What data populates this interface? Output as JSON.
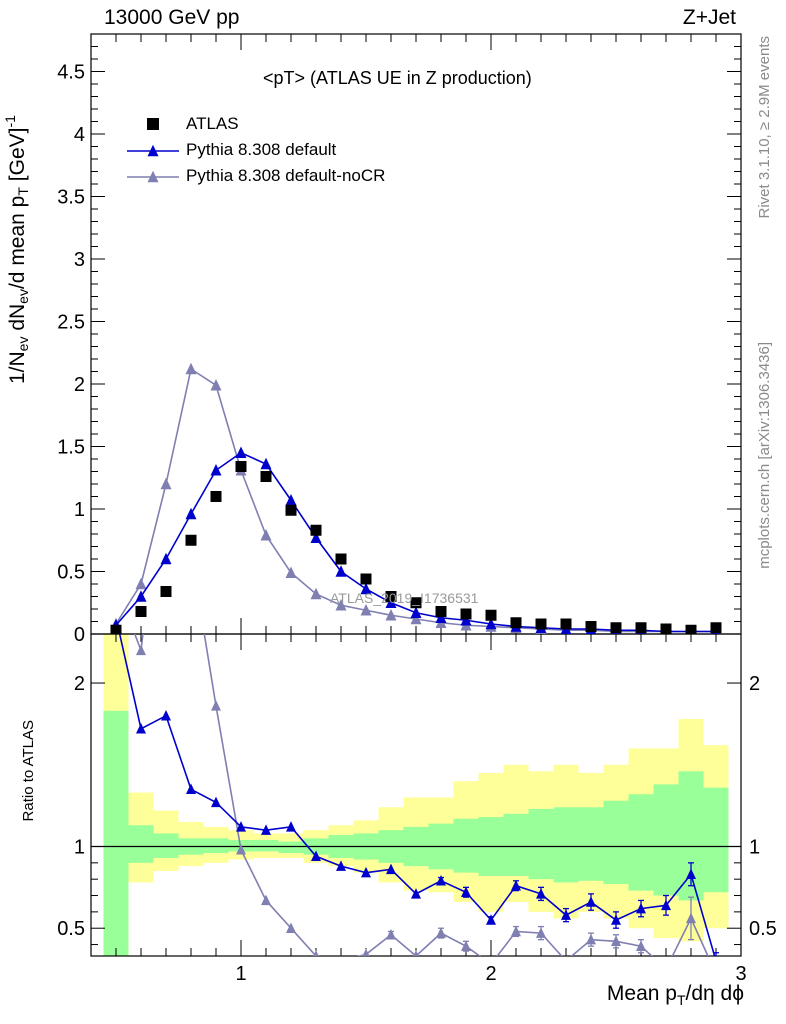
{
  "header": {
    "left": "13000 GeV pp",
    "right": "Z+Jet"
  },
  "side": {
    "rivet": "Rivet 3.1.10, ≥ 2.9M events",
    "mcplots": "mcplots.cern.ch [arXiv:1306.3436]"
  },
  "plot_title": "<pT> (ATLAS UE in Z production)",
  "watermark": "ATLAS_2019_I1736531",
  "legend": [
    {
      "label": "ATLAS",
      "marker": "square",
      "color": "#000000"
    },
    {
      "label": "Pythia 8.308 default",
      "marker": "triangle",
      "color": "#0000cc"
    },
    {
      "label": "Pythia 8.308 default-noCR",
      "marker": "triangle",
      "color": "#7f7fb2"
    }
  ],
  "axes": {
    "ylabel_top": "1/N_ev dN_ev/d mean p_T [GeV]^-1",
    "ylabel_bottom": "Ratio to ATLAS",
    "xlabel": "Mean p_T/dη dϕ"
  },
  "chart_data": [
    {
      "type": "scatter",
      "panel": "main",
      "xlim": [
        0.4,
        3.0
      ],
      "ylim": [
        0,
        4.8
      ],
      "x_ticks": [
        1,
        2,
        3
      ],
      "y_ticks": [
        0,
        0.5,
        1,
        1.5,
        2,
        2.5,
        3,
        3.5,
        4,
        4.5
      ],
      "y_tick_labels": [
        "0",
        "0.5",
        "1",
        "1.5",
        "2",
        "2.5",
        "3",
        "3.5",
        "4",
        "4.5"
      ],
      "x": [
        0.5,
        0.6,
        0.7,
        0.8,
        0.9,
        1.0,
        1.1,
        1.2,
        1.3,
        1.4,
        1.5,
        1.6,
        1.7,
        1.8,
        1.9,
        2.0,
        2.1,
        2.2,
        2.3,
        2.4,
        2.5,
        2.6,
        2.7,
        2.8,
        2.9
      ],
      "series": [
        {
          "name": "ATLAS",
          "color": "#000000",
          "values": [
            0.03,
            0.18,
            0.34,
            0.75,
            1.1,
            1.34,
            1.26,
            0.99,
            0.83,
            0.6,
            0.44,
            0.3,
            0.25,
            0.18,
            0.16,
            0.15,
            0.09,
            0.08,
            0.08,
            0.06,
            0.05,
            0.05,
            0.04,
            0.03,
            0.05
          ]
        },
        {
          "name": "Pythia 8.308 default",
          "color": "#0000cc",
          "values": [
            0.07,
            0.3,
            0.6,
            0.96,
            1.31,
            1.45,
            1.36,
            1.07,
            0.77,
            0.5,
            0.36,
            0.25,
            0.17,
            0.13,
            0.11,
            0.08,
            0.06,
            0.05,
            0.04,
            0.04,
            0.03,
            0.03,
            0.02,
            0.02,
            0.02
          ]
        },
        {
          "name": "Pythia 8.308 default-noCR",
          "color": "#7f7fb2",
          "values": [
            0.08,
            0.4,
            1.2,
            2.12,
            1.99,
            1.31,
            0.79,
            0.49,
            0.32,
            0.23,
            0.19,
            0.15,
            0.12,
            0.09,
            0.07,
            0.06,
            0.05,
            0.04,
            0.03,
            0.03,
            0.02,
            0.02,
            0.02,
            0.02,
            0.02
          ]
        }
      ]
    },
    {
      "type": "line",
      "panel": "ratio",
      "xlim": [
        0.4,
        3.0
      ],
      "ylim": [
        0.33,
        2.3
      ],
      "x_ticks": [
        1,
        2,
        3
      ],
      "x_tick_labels": [
        "1",
        "2",
        "3"
      ],
      "y_ticks": [
        0.5,
        1,
        2
      ],
      "y_tick_labels": [
        "0.5",
        "1",
        "2"
      ],
      "reference_line": 1,
      "x": [
        0.5,
        0.6,
        0.7,
        0.8,
        0.9,
        1.0,
        1.1,
        1.2,
        1.3,
        1.4,
        1.5,
        1.6,
        1.7,
        1.8,
        1.9,
        2.0,
        2.1,
        2.2,
        2.3,
        2.4,
        2.5,
        2.6,
        2.7,
        2.8,
        2.9
      ],
      "bands": {
        "outer": {
          "name": "total uncertainty",
          "color": "#ffff99",
          "lower": [
            0.2,
            0.78,
            0.85,
            0.88,
            0.9,
            0.92,
            0.93,
            0.93,
            0.9,
            0.88,
            0.84,
            0.78,
            0.73,
            0.72,
            0.66,
            0.6,
            0.66,
            0.6,
            0.56,
            0.6,
            0.56,
            0.5,
            0.44,
            0.42,
            0.5
          ],
          "upper": [
            2.5,
            1.33,
            1.22,
            1.15,
            1.12,
            1.1,
            1.08,
            1.08,
            1.1,
            1.13,
            1.16,
            1.24,
            1.3,
            1.3,
            1.4,
            1.45,
            1.5,
            1.46,
            1.5,
            1.45,
            1.5,
            1.6,
            1.6,
            1.78,
            1.62
          ]
        },
        "inner": {
          "name": "stat uncertainty",
          "color": "#99ff99",
          "lower": [
            0.2,
            0.9,
            0.93,
            0.95,
            0.96,
            0.97,
            0.97,
            0.96,
            0.95,
            0.93,
            0.92,
            0.9,
            0.88,
            0.86,
            0.84,
            0.82,
            0.82,
            0.8,
            0.78,
            0.79,
            0.77,
            0.73,
            0.7,
            0.67,
            0.72
          ],
          "upper": [
            1.83,
            1.13,
            1.08,
            1.05,
            1.05,
            1.04,
            1.04,
            1.03,
            1.05,
            1.07,
            1.08,
            1.1,
            1.12,
            1.14,
            1.17,
            1.18,
            1.2,
            1.23,
            1.24,
            1.24,
            1.28,
            1.32,
            1.38,
            1.46,
            1.36
          ]
        }
      },
      "series": [
        {
          "name": "Pythia 8.308 default",
          "color": "#0000cc",
          "values": [
            2.4,
            1.72,
            1.8,
            1.35,
            1.27,
            1.12,
            1.1,
            1.12,
            0.94,
            0.88,
            0.84,
            0.86,
            0.71,
            0.79,
            0.72,
            0.55,
            0.76,
            0.71,
            0.58,
            0.66,
            0.55,
            0.62,
            0.64,
            0.83,
            0.3
          ],
          "errors": [
            0,
            0,
            0,
            0,
            0,
            0,
            0,
            0,
            0,
            0,
            0,
            0,
            0,
            0.02,
            0.03,
            0.02,
            0.03,
            0.04,
            0.04,
            0.05,
            0.05,
            0.05,
            0.06,
            0.07,
            0.05
          ]
        },
        {
          "name": "Pythia 8.308 default-noCR",
          "color": "#7f7fb2",
          "values": [
            2.6,
            2.2,
            3.5,
            2.8,
            1.86,
            0.98,
            0.67,
            0.5,
            0.33,
            0.3,
            0.34,
            0.46,
            0.33,
            0.47,
            0.39,
            0.28,
            0.48,
            0.47,
            0.3,
            0.43,
            0.42,
            0.39,
            0.25,
            0.56,
            0.22
          ],
          "errors": [
            0,
            0,
            0,
            0,
            0,
            0,
            0,
            0,
            0,
            0,
            0,
            0.02,
            0,
            0.03,
            0.03,
            0,
            0.03,
            0.04,
            0,
            0.04,
            0.04,
            0.04,
            0,
            0.13,
            0
          ]
        }
      ]
    }
  ]
}
